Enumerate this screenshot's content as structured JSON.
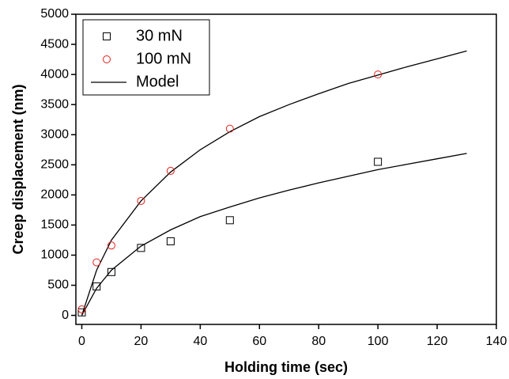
{
  "chart_data": {
    "type": "scatter",
    "x_label": "Holding time (sec)",
    "y_label": "Creep displacement (nm)",
    "xlim": [
      -2,
      140
    ],
    "ylim": [
      -150,
      5000
    ],
    "xticks": [
      0,
      20,
      40,
      60,
      80,
      100,
      120,
      140
    ],
    "yticks": [
      0,
      500,
      1000,
      1500,
      2000,
      2500,
      3000,
      3500,
      4000,
      4500,
      5000
    ],
    "legend": "upper left",
    "series": [
      {
        "name": "30 mN",
        "color": "#000000",
        "marker": "square",
        "x": [
          0,
          5,
          10,
          20,
          30,
          50,
          100
        ],
        "values": [
          50,
          480,
          720,
          1120,
          1230,
          1580,
          2550
        ]
      },
      {
        "name": "100 mN",
        "color": "#e0201b",
        "marker": "circle",
        "x": [
          0,
          5,
          10,
          20,
          30,
          50,
          100
        ],
        "values": [
          100,
          880,
          1160,
          1900,
          2400,
          3100,
          4000
        ]
      }
    ],
    "model": {
      "name": "Model",
      "color": "#000000",
      "x": [
        0,
        5,
        10,
        20,
        30,
        40,
        50,
        60,
        70,
        80,
        90,
        100,
        110,
        120,
        130
      ],
      "curves": [
        [
          0,
          450,
          750,
          1150,
          1420,
          1640,
          1800,
          1950,
          2080,
          2200,
          2310,
          2420,
          2510,
          2600,
          2690
        ],
        [
          0,
          750,
          1250,
          1900,
          2380,
          2750,
          3050,
          3300,
          3500,
          3680,
          3850,
          3990,
          4130,
          4260,
          4390
        ]
      ]
    }
  }
}
